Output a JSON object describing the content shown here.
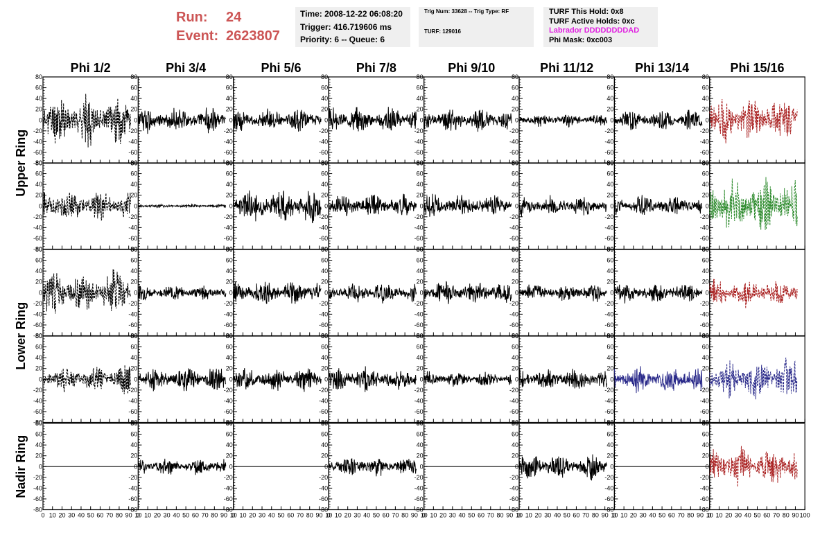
{
  "header": {
    "run_label": "Run:",
    "run_value": "24",
    "event_label": "Event:",
    "event_value": "2623807",
    "time": "Time: 2008-12-22 06:08:20",
    "trigger": "Trigger: 416.719606 ms",
    "priority": "Priority: 6 -- Queue: 6",
    "trig_num": "Trig Num: 33628 -- Trig Type: RF",
    "turf": "TURF: 129016",
    "turf_hold": "TURF This Hold: 0x8",
    "turf_active": "TURF Active Holds: 0xc",
    "labrador": "Labrador DDDDDDDDAD",
    "phi_mask": "Phi Mask: 0xc003"
  },
  "colors": {
    "run_text": "#cc5555",
    "labrador": "#e020e0",
    "trace_black": "#000000",
    "trace_red": "#aa2222",
    "trace_green": "#2e8b2e",
    "trace_blue": "#2a2a8a"
  },
  "chart_data": {
    "type": "line",
    "columns": [
      "Phi 1/2",
      "Phi 3/4",
      "Phi 5/6",
      "Phi 7/8",
      "Phi 9/10",
      "Phi 11/12",
      "Phi 13/14",
      "Phi 15/16"
    ],
    "ring_labels": [
      {
        "label": "Upper Ring",
        "rows": [
          0,
          1
        ]
      },
      {
        "label": "Lower Ring",
        "rows": [
          2,
          3
        ]
      },
      {
        "label": "Nadir Ring",
        "rows": [
          4
        ]
      }
    ],
    "xlim": [
      0,
      100
    ],
    "ylim": [
      -80,
      80
    ],
    "y_ticks": [
      "80",
      "60",
      "40",
      "20",
      "0",
      "-20",
      "-40",
      "-60",
      "-80"
    ],
    "x_tick_strip": [
      "0",
      "10",
      "20",
      "30",
      "40",
      "50",
      "60",
      "70",
      "80",
      "90",
      "10"
    ],
    "x_tick_strip_last": [
      "0",
      "10",
      "20",
      "30",
      "40",
      "50",
      "60",
      "70",
      "80",
      "90",
      "100"
    ],
    "panels": [
      [
        {
          "style": "dash",
          "color": "black",
          "amp": 38,
          "seed": 11
        },
        {
          "style": "solid",
          "color": "black",
          "amp": 20,
          "seed": 12
        },
        {
          "style": "solid",
          "color": "black",
          "amp": 18,
          "seed": 13
        },
        {
          "style": "solid",
          "color": "black",
          "amp": 20,
          "seed": 14
        },
        {
          "style": "solid",
          "color": "black",
          "amp": 18,
          "seed": 15
        },
        {
          "style": "solid",
          "color": "black",
          "amp": 10,
          "seed": 16
        },
        {
          "style": "solid",
          "color": "black",
          "amp": 16,
          "seed": 17
        },
        {
          "style": "dash",
          "color": "red",
          "amp": 38,
          "seed": 18
        }
      ],
      [
        {
          "style": "dash",
          "color": "black",
          "amp": 25,
          "seed": 21
        },
        {
          "style": "solid",
          "color": "black",
          "amp": 3,
          "seed": 22
        },
        {
          "style": "solid",
          "color": "black",
          "amp": 28,
          "seed": 23
        },
        {
          "style": "solid",
          "color": "black",
          "amp": 18,
          "seed": 24
        },
        {
          "style": "solid",
          "color": "black",
          "amp": 18,
          "seed": 25
        },
        {
          "style": "solid",
          "color": "black",
          "amp": 16,
          "seed": 26
        },
        {
          "style": "solid",
          "color": "black",
          "amp": 16,
          "seed": 27
        },
        {
          "style": "dash",
          "color": "green",
          "amp": 45,
          "seed": 28
        }
      ],
      [
        {
          "style": "dash",
          "color": "black",
          "amp": 35,
          "seed": 31
        },
        {
          "style": "solid",
          "color": "black",
          "amp": 12,
          "seed": 32
        },
        {
          "style": "solid",
          "color": "black",
          "amp": 20,
          "seed": 33
        },
        {
          "style": "solid",
          "color": "black",
          "amp": 16,
          "seed": 34
        },
        {
          "style": "solid",
          "color": "black",
          "amp": 18,
          "seed": 35
        },
        {
          "style": "solid",
          "color": "black",
          "amp": 14,
          "seed": 36
        },
        {
          "style": "solid",
          "color": "black",
          "amp": 16,
          "seed": 37
        },
        {
          "style": "dash",
          "color": "red",
          "amp": 22,
          "seed": 38
        }
      ],
      [
        {
          "style": "dash",
          "color": "black",
          "amp": 22,
          "seed": 41
        },
        {
          "style": "solid",
          "color": "black",
          "amp": 20,
          "seed": 42
        },
        {
          "style": "solid",
          "color": "black",
          "amp": 18,
          "seed": 43
        },
        {
          "style": "solid",
          "color": "black",
          "amp": 20,
          "seed": 44
        },
        {
          "style": "solid",
          "color": "black",
          "amp": 12,
          "seed": 45
        },
        {
          "style": "solid",
          "color": "black",
          "amp": 18,
          "seed": 46
        },
        {
          "style": "solid",
          "color": "blue",
          "amp": 20,
          "seed": 47
        },
        {
          "style": "dash",
          "color": "blue",
          "amp": 35,
          "seed": 48
        }
      ],
      [
        {
          "style": "flat",
          "color": "black",
          "amp": 0,
          "seed": 51
        },
        {
          "style": "solid",
          "color": "black",
          "amp": 14,
          "seed": 52
        },
        {
          "style": "flat",
          "color": "black",
          "amp": 0,
          "seed": 53
        },
        {
          "style": "solid",
          "color": "black",
          "amp": 16,
          "seed": 54
        },
        {
          "style": "flat",
          "color": "black",
          "amp": 0,
          "seed": 55
        },
        {
          "style": "solid",
          "color": "black",
          "amp": 20,
          "seed": 56
        },
        {
          "style": "flat",
          "color": "black",
          "amp": 0,
          "seed": 57
        },
        {
          "style": "dash",
          "color": "red",
          "amp": 32,
          "seed": 58
        }
      ]
    ]
  }
}
